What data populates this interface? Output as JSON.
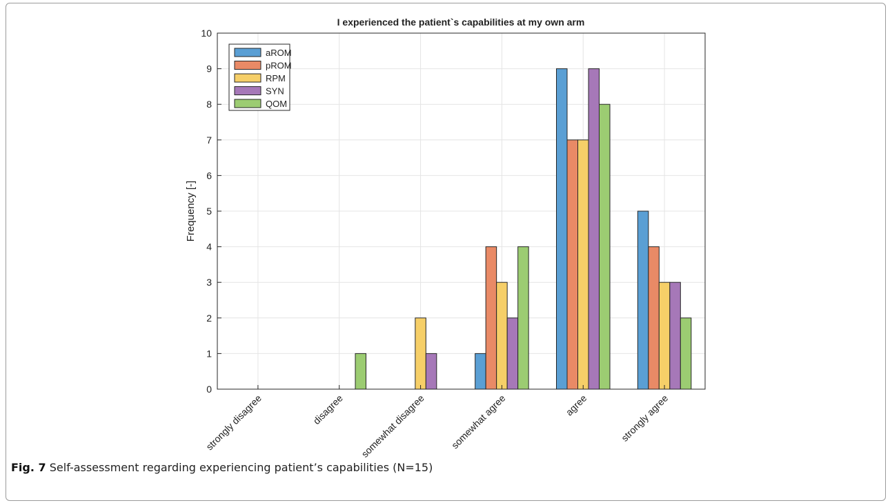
{
  "chart_data": {
    "type": "bar",
    "title": "I experienced the patient`s capabilities at my own arm",
    "xlabel": "",
    "ylabel": "Frequency [-]",
    "ylim": [
      0,
      10
    ],
    "yticks": [
      0,
      1,
      2,
      3,
      4,
      5,
      6,
      7,
      8,
      9,
      10
    ],
    "grid": true,
    "legend_position": "top-left",
    "categories": [
      "strongly disagree",
      "disagree",
      "somewhat disagree",
      "somewhat agree",
      "agree",
      "strongly agree"
    ],
    "series": [
      {
        "name": "aROM",
        "color": "#5a9fd4",
        "values": [
          0,
          0,
          0,
          1,
          9,
          5
        ]
      },
      {
        "name": "pROM",
        "color": "#e98a66",
        "values": [
          0,
          0,
          0,
          4,
          7,
          4
        ]
      },
      {
        "name": "RPM",
        "color": "#f6cf68",
        "values": [
          0,
          0,
          2,
          3,
          7,
          3
        ]
      },
      {
        "name": "SYN",
        "color": "#a678b8",
        "values": [
          0,
          0,
          1,
          2,
          9,
          3
        ]
      },
      {
        "name": "QOM",
        "color": "#9ccc72",
        "values": [
          0,
          1,
          0,
          4,
          8,
          2
        ]
      }
    ]
  },
  "caption": {
    "label": "Fig. 7",
    "text": "Self-assessment regarding experiencing patient’s capabilities (N=15)"
  }
}
